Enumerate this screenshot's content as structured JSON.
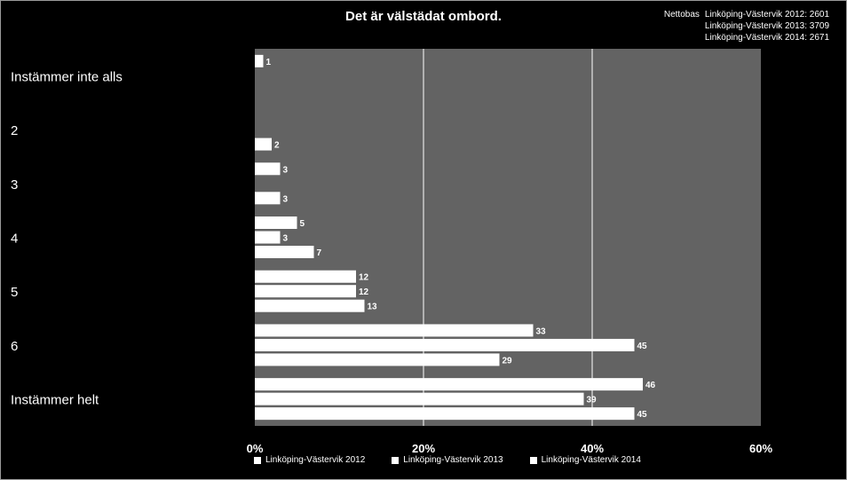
{
  "chart_data": {
    "type": "bar",
    "orientation": "horizontal",
    "title": "Det är välstädat ombord.",
    "categories": [
      "Instämmer inte alls",
      "2",
      "3",
      "4",
      "5",
      "6",
      "Instämmer helt"
    ],
    "series": [
      {
        "name": "Linköping-Västervik 2012",
        "values": [
          1,
          null,
          3,
          5,
          12,
          33,
          46
        ]
      },
      {
        "name": "Linköping-Västervik 2013",
        "values": [
          null,
          null,
          null,
          3,
          12,
          45,
          39
        ]
      },
      {
        "name": "Linköping-Västervik 2014",
        "values": [
          null,
          2,
          3,
          7,
          13,
          29,
          45
        ]
      }
    ],
    "x_ticks": [
      "0%",
      "20%",
      "40%",
      "60%"
    ],
    "xlim": [
      0,
      60
    ],
    "grid": true,
    "legend_position": "bottom",
    "plot_background": "#636363",
    "bar_color": "#ffffff"
  },
  "nettobas": {
    "label": "Nettobas",
    "values": [
      "Linköping-Västervik 2012: 2601",
      "Linköping-Västervik 2013: 3709",
      "Linköping-Västervik 2014: 2671"
    ]
  }
}
